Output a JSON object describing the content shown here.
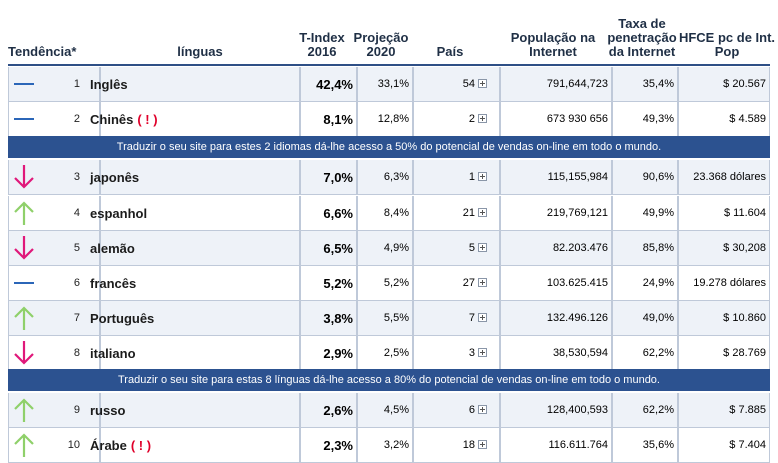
{
  "headers": {
    "trend": "Tendência*",
    "languages": "línguas",
    "tindex_line1": "T-Index",
    "tindex_line2": "2016",
    "proj_line1": "Projeção",
    "proj_line2": "2020",
    "country": "País",
    "pop_line1": "População na",
    "pop_line2": "Internet",
    "taxa_line1": "Taxa de",
    "taxa_line2": "penetração",
    "taxa_line3": "da Internet",
    "hfce_line1": "HFCE pc de Int.",
    "hfce_line2": "Pop"
  },
  "rows": [
    {
      "trend": "flat",
      "rank": "1",
      "lang": "Inglês",
      "excl": "",
      "tindex": "42,4%",
      "proj": "33,1%",
      "pais": "54",
      "pop": "791,644,723",
      "taxa": "35,4%",
      "hfce": "$ 20.567"
    },
    {
      "trend": "flat",
      "rank": "2",
      "lang": "Chinês",
      "excl": "( ! )",
      "tindex": "8,1%",
      "proj": "12,8%",
      "pais": "2",
      "pop": "673 930 656",
      "taxa": "49,3%",
      "hfce": "$ 4.589"
    },
    {
      "trend": "down",
      "rank": "3",
      "lang": "japonês",
      "excl": "",
      "tindex": "7,0%",
      "proj": "6,3%",
      "pais": "1",
      "pop": "115,155,984",
      "taxa": "90,6%",
      "hfce": "23.368 dólares"
    },
    {
      "trend": "up",
      "rank": "4",
      "lang": "espanhol",
      "excl": "",
      "tindex": "6,6%",
      "proj": "8,4%",
      "pais": "21",
      "pop": "219,769,121",
      "taxa": "49,9%",
      "hfce": "$ 11.604"
    },
    {
      "trend": "down",
      "rank": "5",
      "lang": "alemão",
      "excl": "",
      "tindex": "6,5%",
      "proj": "4,9%",
      "pais": "5",
      "pop": "82.203.476",
      "taxa": "85,8%",
      "hfce": "$ 30,208"
    },
    {
      "trend": "flat",
      "rank": "6",
      "lang": "francês",
      "excl": "",
      "tindex": "5,2%",
      "proj": "5,2%",
      "pais": "27",
      "pop": "103.625.415",
      "taxa": "24,9%",
      "hfce": "19.278 dólares"
    },
    {
      "trend": "up",
      "rank": "7",
      "lang": "Português",
      "excl": "",
      "tindex": "3,8%",
      "proj": "5,5%",
      "pais": "7",
      "pop": "132.496.126",
      "taxa": "49,0%",
      "hfce": "$ 10.860"
    },
    {
      "trend": "down",
      "rank": "8",
      "lang": "italiano",
      "excl": "",
      "tindex": "2,9%",
      "proj": "2,5%",
      "pais": "3",
      "pop": "38,530,594",
      "taxa": "62,2%",
      "hfce": "$ 28.769"
    },
    {
      "trend": "up",
      "rank": "9",
      "lang": "russo",
      "excl": "",
      "tindex": "2,6%",
      "proj": "4,5%",
      "pais": "6",
      "pop": "128,400,593",
      "taxa": "62,2%",
      "hfce": "$ 7.885"
    },
    {
      "trend": "up",
      "rank": "10",
      "lang": "Árabe",
      "excl": "( ! )",
      "tindex": "2,3%",
      "proj": "3,2%",
      "pais": "18",
      "pop": "116.611.764",
      "taxa": "35,6%",
      "hfce": "$ 7.404"
    }
  ],
  "banners": {
    "first": "Traduzir o seu site para estes 2 idiomas dá-lhe acesso a 50% do potencial de vendas on-line em todo o mundo.",
    "second": "Traduzir o seu site para estas 8 línguas dá-lhe acesso a 80% do potencial de vendas on-line em todo o mundo."
  },
  "colors": {
    "flat": "#2b66b8",
    "down": "#e0187a",
    "up": "#8fd06a",
    "banner": "#2c5290"
  }
}
